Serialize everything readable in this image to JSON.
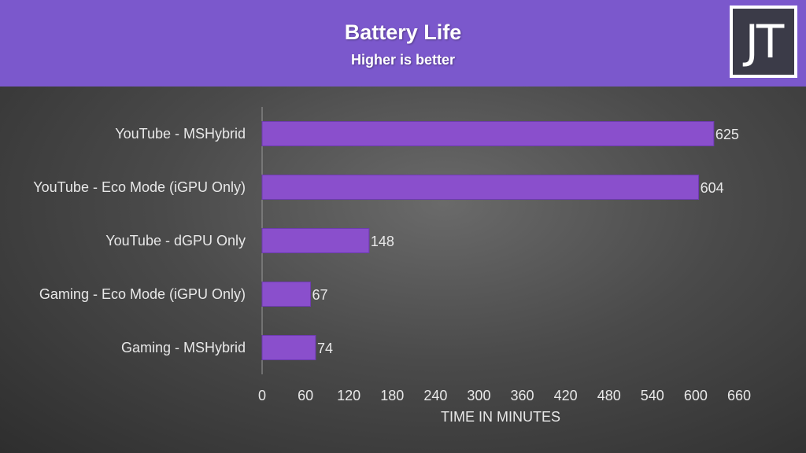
{
  "header": {
    "title": "Battery Life",
    "subtitle": "Higher is better",
    "logo_text": "JT"
  },
  "colors": {
    "header_bg": "#7b58cc",
    "bar": "#8a4fcc",
    "text": "#e8e8e8",
    "axis": "#9a9a9a"
  },
  "chart_data": {
    "type": "bar",
    "orientation": "horizontal",
    "title": "Battery Life",
    "subtitle": "Higher is better",
    "xlabel": "TIME IN MINUTES",
    "ylabel": "",
    "xlim": [
      0,
      660
    ],
    "xticks": [
      0,
      60,
      120,
      180,
      240,
      300,
      360,
      420,
      480,
      540,
      600,
      660
    ],
    "grid": false,
    "categories": [
      "YouTube - MSHybrid",
      "YouTube - Eco Mode (iGPU Only)",
      "YouTube - dGPU Only",
      "Gaming - Eco Mode (iGPU Only)",
      "Gaming - MSHybrid"
    ],
    "values": [
      625,
      604,
      148,
      67,
      74
    ],
    "data_labels": [
      "625",
      "604",
      "148",
      "67",
      "74"
    ]
  }
}
